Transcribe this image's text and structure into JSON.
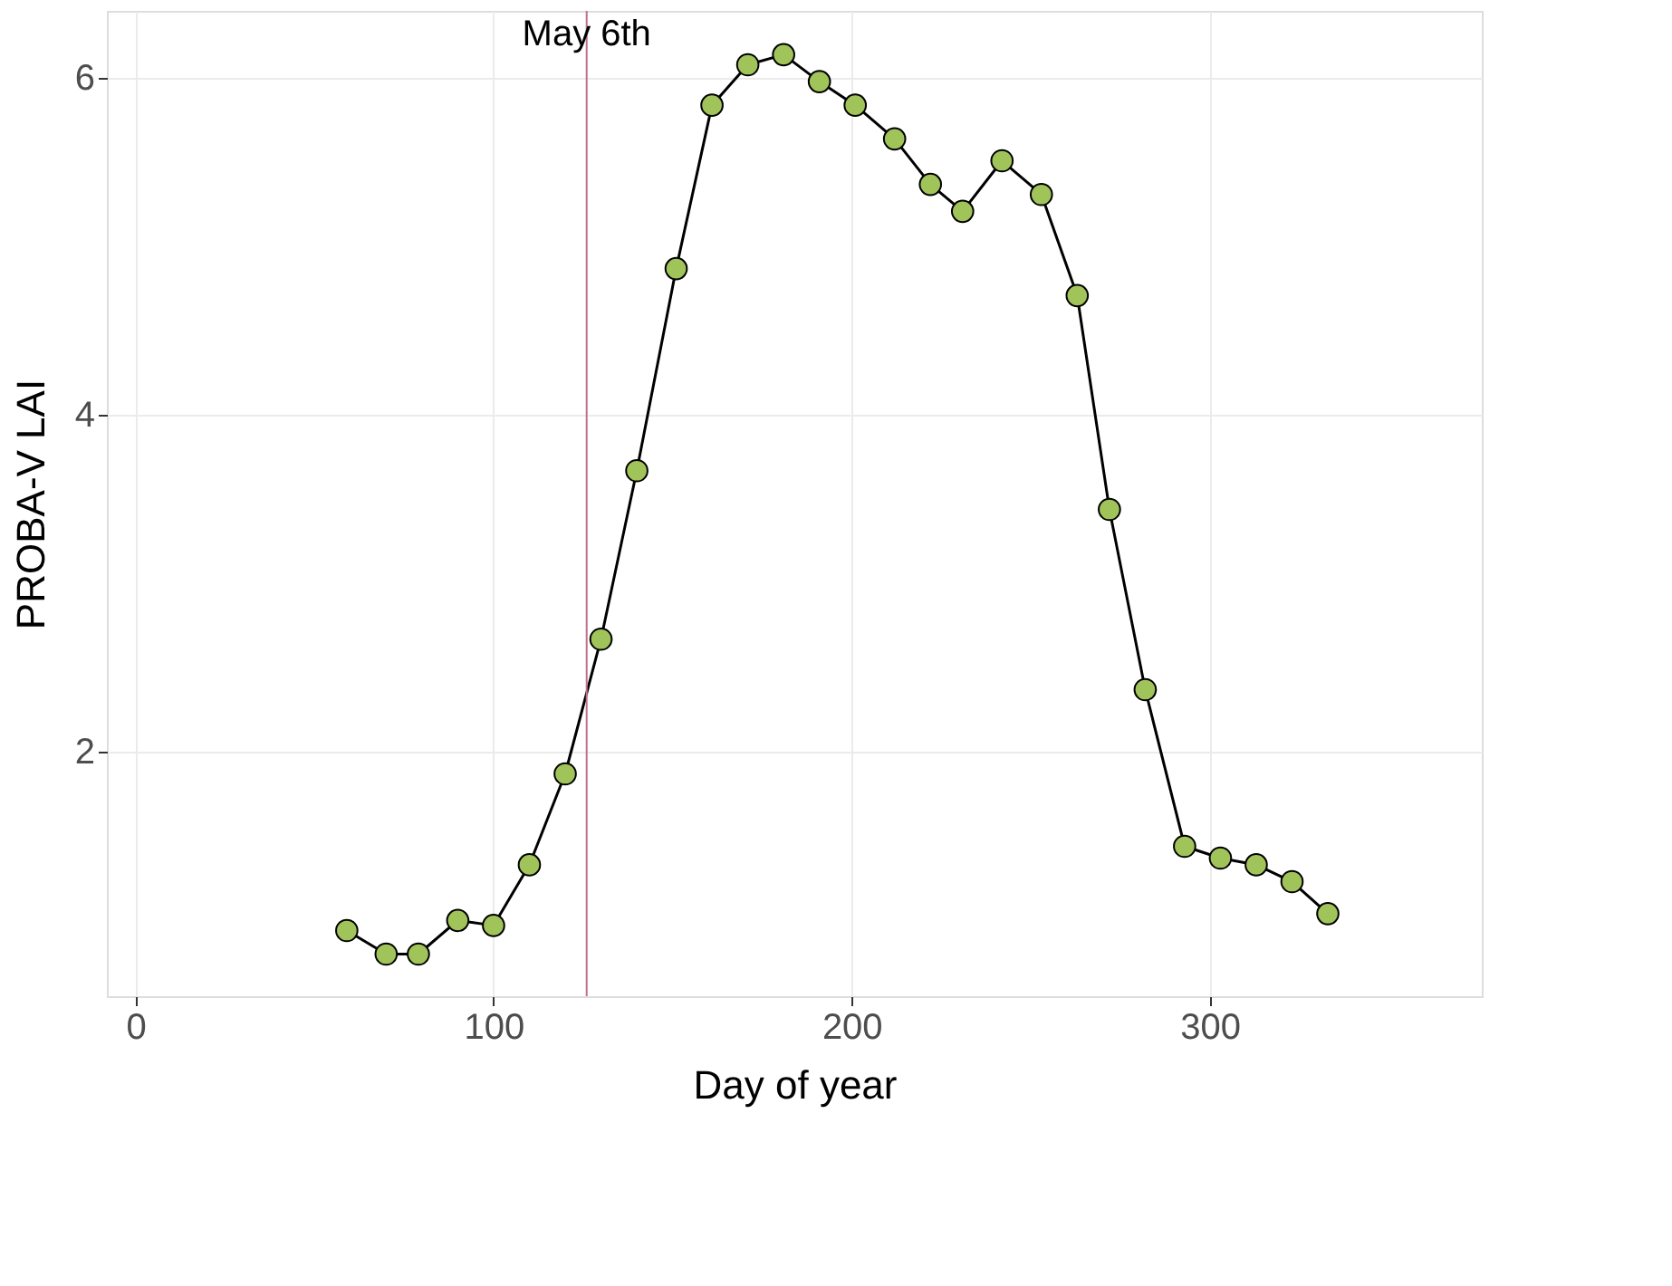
{
  "chart_data": {
    "type": "line",
    "xlabel": "Day of year",
    "ylabel": "PROBA-V LAI",
    "x": [
      59,
      70,
      79,
      90,
      100,
      110,
      120,
      130,
      140,
      151,
      161,
      171,
      181,
      191,
      201,
      212,
      222,
      231,
      242,
      253,
      263,
      272,
      282,
      293,
      303,
      313,
      323,
      333
    ],
    "series": [
      {
        "color": "#a1c45a",
        "values": [
          0.94,
          0.8,
          0.8,
          1.0,
          0.97,
          1.33,
          1.87,
          2.67,
          3.67,
          4.87,
          5.84,
          6.08,
          6.14,
          5.98,
          5.84,
          5.64,
          5.37,
          5.21,
          5.51,
          5.31,
          4.71,
          3.44,
          2.37,
          1.44,
          1.37,
          1.33,
          1.23,
          1.04
        ]
      }
    ],
    "xlim": [
      -8,
      376
    ],
    "xticks": [
      0,
      100,
      200,
      300
    ],
    "ylim": [
      0.55,
      6.4
    ],
    "yticks": [
      2,
      4,
      6
    ],
    "ref_lines": [
      {
        "axis": "x",
        "value": 126,
        "label": "May 6th",
        "color": "#c0708a"
      }
    ],
    "grid": true,
    "marker": "circle",
    "line_style": "solid"
  }
}
